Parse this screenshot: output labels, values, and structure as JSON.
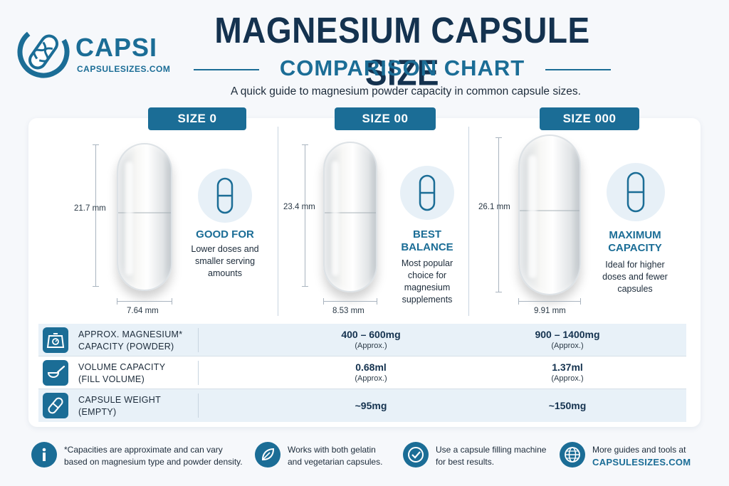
{
  "brand": {
    "name": "CAPSI",
    "url": "CAPSULESIZES.COM"
  },
  "header": {
    "title": "MAGNESIUM CAPSULE SIZE",
    "subtitle": "COMPARISON CHART",
    "tagline": "A quick guide to magnesium powder capacity in common capsule sizes."
  },
  "sizes": [
    {
      "label": "SIZE 0",
      "length": "21.7 mm",
      "diameter": "7.64 mm",
      "feature_title": "GOOD FOR",
      "feature_text": "Lower doses and smaller serving amounts"
    },
    {
      "label": "SIZE 00",
      "length": "23.4 mm",
      "diameter": "8.53 mm",
      "feature_title": "BEST BALANCE",
      "feature_text": "Most popular choice for magnesium supplements"
    },
    {
      "label": "SIZE 000",
      "length": "26.1 mm",
      "diameter": "9.91 mm",
      "feature_title": "MAXIMUM CAPACITY",
      "feature_text": "Ideal for higher doses and fewer capsules"
    }
  ],
  "table": {
    "rows": [
      {
        "icon": "scale-icon",
        "label_line1": "APPROX. MAGNESIUM*",
        "label_line2": "CAPACITY (POWDER)",
        "size00": "400 – 600mg",
        "size00_note": "(Approx.)",
        "size000": "900 – 1400mg",
        "size000_note": "(Approx.)"
      },
      {
        "icon": "scoop-icon",
        "label_line1": "VOLUME CAPACITY",
        "label_line2": "(FILL VOLUME)",
        "size00": "0.68ml",
        "size00_note": "(Approx.)",
        "size000": "1.37ml",
        "size000_note": "(Approx.)"
      },
      {
        "icon": "capsule-icon",
        "label_line1": "CAPSULE WEIGHT",
        "label_line2": "(EMPTY)",
        "size00": "~95mg",
        "size00_note": "",
        "size000": "~150mg",
        "size000_note": ""
      }
    ]
  },
  "footer": {
    "note1_line1": "*Capacities are approximate and can vary",
    "note1_line2": "based on magnesium type and powder density.",
    "note2_line1": "Works with both gelatin",
    "note2_line2": "and vegetarian capsules.",
    "note3_line1": "Use a capsule filling machine",
    "note3_line2": "for best results.",
    "note4_line1": "More guides and tools at",
    "note4_link": "CAPSULESIZES.COM"
  },
  "colors": {
    "brand": "#1b6d96",
    "title": "#14324f",
    "band": "#e8f1f8"
  }
}
